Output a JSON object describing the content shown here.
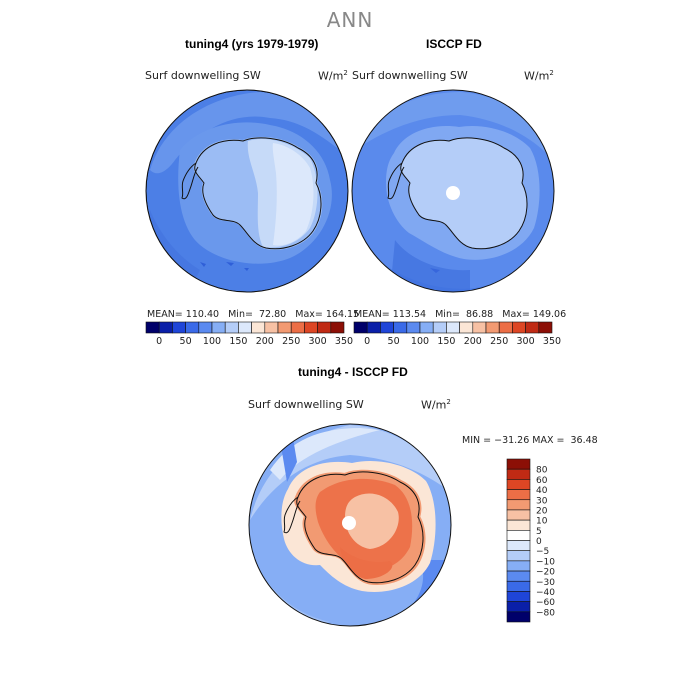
{
  "main_title": "ANN",
  "panels": [
    {
      "title": "tuning4 (yrs 1979-1979)",
      "variable": "Surf downwelling SW",
      "units": "W/m",
      "units_exp": "2",
      "stats": {
        "mean_label": "MEAN=",
        "mean": "110.40",
        "min_label": "Min=",
        "min": "72.80",
        "max_label": "Max=",
        "max": "164.15"
      }
    },
    {
      "title": "ISCCP FD",
      "variable": "Surf downwelling SW",
      "units": "W/m",
      "units_exp": "2",
      "stats": {
        "mean_label": "MEAN=",
        "mean": "113.54",
        "min_label": "Min=",
        "min": "86.88",
        "max_label": "Max=",
        "max": "149.06"
      }
    }
  ],
  "diff_panel": {
    "title": "tuning4 - ISCCP FD",
    "variable": "Surf downwelling SW",
    "units": "W/m",
    "units_exp": "2",
    "minmax": "MIN = −31.26 MAX =  36.48"
  },
  "chart_data": [
    {
      "type": "heatmap",
      "projection": "south-polar-stereographic",
      "title": "tuning4 (yrs 1979-1979)",
      "colorbar_ticks": [
        "0",
        "50",
        "100",
        "150",
        "200",
        "250",
        "300",
        "350"
      ],
      "colorbar_levels": [
        0,
        25,
        50,
        75,
        100,
        125,
        150,
        175,
        200,
        225,
        250,
        275,
        300,
        325,
        350
      ],
      "colors": [
        "#00006a",
        "#0a1fa8",
        "#1f45d8",
        "#3a6ae8",
        "#5b8af0",
        "#86aef5",
        "#b4cdf8",
        "#dce8fb",
        "#fbe6d6",
        "#f7c1a4",
        "#f29a72",
        "#ec6e46",
        "#dd4624",
        "#c02a14",
        "#8c0f06"
      ],
      "mean": 110.4,
      "min": 72.8,
      "max": 164.15
    },
    {
      "type": "heatmap",
      "projection": "south-polar-stereographic",
      "title": "ISCCP FD",
      "colorbar_ticks": [
        "0",
        "50",
        "100",
        "150",
        "200",
        "250",
        "300",
        "350"
      ],
      "colorbar_levels": [
        0,
        25,
        50,
        75,
        100,
        125,
        150,
        175,
        200,
        225,
        250,
        275,
        300,
        325,
        350
      ],
      "colors": [
        "#00006a",
        "#0a1fa8",
        "#1f45d8",
        "#3a6ae8",
        "#5b8af0",
        "#86aef5",
        "#b4cdf8",
        "#dce8fb",
        "#fbe6d6",
        "#f7c1a4",
        "#f29a72",
        "#ec6e46",
        "#dd4624",
        "#c02a14",
        "#8c0f06"
      ],
      "mean": 113.54,
      "min": 86.88,
      "max": 149.06
    },
    {
      "type": "heatmap",
      "projection": "south-polar-stereographic",
      "title": "tuning4 - ISCCP FD",
      "colorbar_ticks": [
        "80",
        "60",
        "40",
        "30",
        "20",
        "10",
        "5",
        "0",
        "−5",
        "−10",
        "−20",
        "−30",
        "−40",
        "−60",
        "−80"
      ],
      "colors_top_to_bottom": [
        "#8c0f06",
        "#c02a14",
        "#dd4624",
        "#ec6e46",
        "#f29a72",
        "#f7c1a4",
        "#fbe6d6",
        "#ffffff",
        "#dce8fb",
        "#b4cdf8",
        "#86aef5",
        "#5b8af0",
        "#3a6ae8",
        "#1f45d8",
        "#0a1fa8",
        "#00006a"
      ],
      "min": -31.26,
      "max": 36.48
    }
  ]
}
